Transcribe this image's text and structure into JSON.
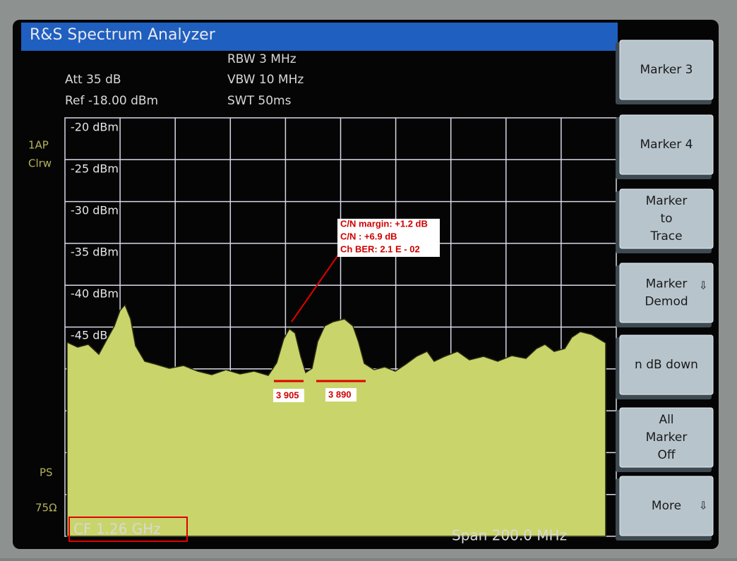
{
  "header": {
    "title": "R&S Spectrum Analyzer"
  },
  "settings": {
    "rbw": "RBW 3 MHz",
    "vbw": "VBW 10 MHz",
    "swt": "SWT 50ms",
    "att": "Att  35 dB",
    "ref": "Ref  -18.00 dBm"
  },
  "side_labels": {
    "trace": "1AP",
    "mode": "Clrw",
    "ps": "PS",
    "impedance": "75Ω"
  },
  "y_axis_labels": [
    "-20 dBm",
    "-25 dBm",
    "-30 dBm",
    "-35 dBm",
    "-40 dBm",
    "-45 dB"
  ],
  "annotation": {
    "lines": [
      "C/N margin: +1.2 dB",
      "C/N : +6.9 dB",
      "Ch BER: 2.1 E - 02"
    ],
    "markers": [
      "3 905",
      "3 890"
    ]
  },
  "footer": {
    "center_frequency": "CF 1.26 GHz",
    "span": "Span 200.0 MHz"
  },
  "softkeys": [
    [
      "Marker 3"
    ],
    [
      "Marker 4"
    ],
    [
      "Marker",
      "to",
      "Trace"
    ],
    [
      "Marker",
      "Demod"
    ],
    [
      "n dB down"
    ],
    [
      "All",
      "Marker",
      "Off"
    ],
    [
      "More"
    ]
  ]
}
